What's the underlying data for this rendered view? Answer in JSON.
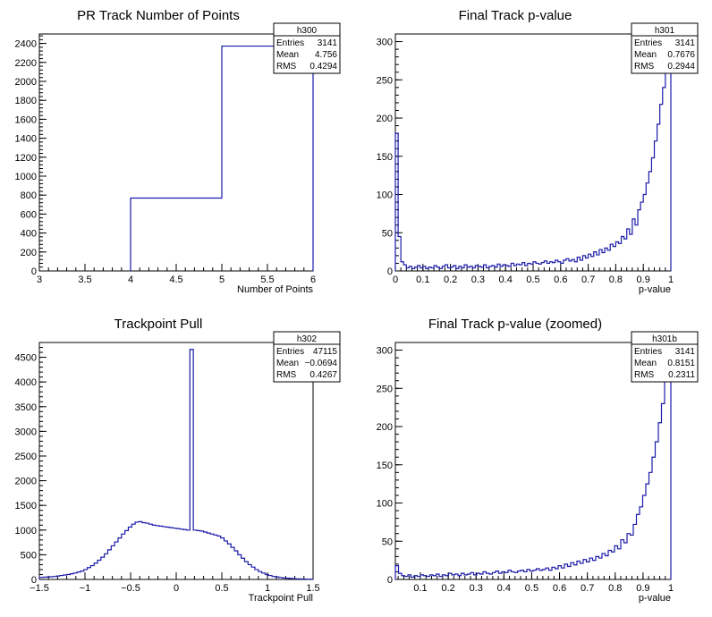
{
  "chart_data": [
    {
      "type": "histogram",
      "title": "PR Track Number of Points",
      "xlabel": "Number of Points",
      "ylabel": "",
      "xlim": [
        3,
        6
      ],
      "ylim": [
        0,
        2500
      ],
      "xticks": [
        "3",
        "3.5",
        "4",
        "4.5",
        "5",
        "5.5",
        "6"
      ],
      "yticks": [
        "0",
        "200",
        "400",
        "600",
        "800",
        "1000",
        "1200",
        "1400",
        "1600",
        "1800",
        "2000",
        "2200",
        "2400"
      ],
      "stats": {
        "name": "h300",
        "entries": "3141",
        "mean": "4.756",
        "rms": "0.4294"
      },
      "bin_edges": [
        4,
        5,
        6
      ],
      "values": [
        769,
        2372
      ]
    },
    {
      "type": "histogram",
      "title": "Final Track p-value",
      "xlabel": "p-value",
      "ylabel": "",
      "xlim": [
        0,
        1
      ],
      "ylim": [
        0,
        310
      ],
      "xticks": [
        "0",
        "0.1",
        "0.2",
        "0.3",
        "0.4",
        "0.5",
        "0.6",
        "0.7",
        "0.8",
        "0.9",
        "1"
      ],
      "yticks": [
        "0",
        "50",
        "100",
        "150",
        "200",
        "250",
        "300"
      ],
      "stats": {
        "name": "h301",
        "entries": "3141",
        "mean": "0.7676",
        "rms": "0.2944"
      },
      "bin_edges_range": [
        0,
        1
      ],
      "values": [
        180,
        45,
        12,
        8,
        4,
        6,
        3,
        5,
        7,
        4,
        6,
        3,
        5,
        4,
        7,
        5,
        3,
        6,
        8,
        4,
        5,
        7,
        3,
        6,
        4,
        8,
        5,
        6,
        4,
        7,
        6,
        5,
        8,
        4,
        6,
        7,
        5,
        9,
        6,
        8,
        7,
        6,
        10,
        7,
        9,
        8,
        11,
        7,
        10,
        9,
        12,
        10,
        9,
        11,
        13,
        10,
        12,
        11,
        14,
        12,
        10,
        14,
        16,
        13,
        15,
        12,
        18,
        14,
        20,
        17,
        22,
        19,
        25,
        21,
        28,
        24,
        30,
        27,
        35,
        32,
        38,
        36,
        45,
        42,
        55,
        48,
        68,
        60,
        80,
        90,
        100,
        115,
        130,
        148,
        170,
        192,
        218,
        240,
        270,
        305
      ]
    },
    {
      "type": "histogram",
      "title": "Trackpoint Pull",
      "xlabel": "Trackpoint Pull",
      "ylabel": "",
      "xlim": [
        -1.5,
        1.5
      ],
      "ylim": [
        0,
        4800
      ],
      "xticks": [
        "−1.5",
        "−1",
        "−0.5",
        "0",
        "0.5",
        "1",
        "1.5"
      ],
      "yticks": [
        "0",
        "500",
        "1000",
        "1500",
        "2000",
        "2500",
        "3000",
        "3500",
        "4000",
        "4500"
      ],
      "stats": {
        "name": "h302",
        "entries": "47115",
        "mean": "−0.0694",
        "rms": "0.4267"
      },
      "bin_edges_range": [
        -1.5,
        1.5
      ],
      "values": [
        40,
        45,
        50,
        55,
        60,
        70,
        80,
        90,
        100,
        115,
        130,
        150,
        170,
        200,
        240,
        280,
        330,
        390,
        450,
        520,
        600,
        680,
        760,
        840,
        920,
        990,
        1060,
        1120,
        1160,
        1170,
        1150,
        1140,
        1120,
        1100,
        1090,
        1080,
        1070,
        1060,
        1050,
        1040,
        1030,
        1020,
        1010,
        1000,
        4660,
        1000,
        990,
        980,
        960,
        940,
        920,
        900,
        880,
        840,
        780,
        720,
        650,
        580,
        500,
        430,
        360,
        300,
        250,
        200,
        160,
        130,
        100,
        80,
        60,
        50,
        40,
        30,
        25,
        20,
        15,
        12,
        10,
        8,
        6,
        5
      ]
    },
    {
      "type": "histogram",
      "title": "Final Track p-value (zoomed)",
      "xlabel": "p-value",
      "ylabel": "",
      "xlim": [
        0.01,
        1
      ],
      "ylim": [
        0,
        310
      ],
      "xticks": [
        "0.1",
        "0.2",
        "0.3",
        "0.4",
        "0.5",
        "0.6",
        "0.7",
        "0.8",
        "0.9",
        "1"
      ],
      "yticks": [
        "0",
        "50",
        "100",
        "150",
        "200",
        "250",
        "300"
      ],
      "stats": {
        "name": "h301b",
        "entries": "3141",
        "mean": "0.8151",
        "rms": "0.2311"
      },
      "bin_edges_range": [
        0.01,
        1
      ],
      "values": [
        18,
        8,
        5,
        4,
        6,
        3,
        5,
        4,
        6,
        5,
        4,
        6,
        5,
        7,
        4,
        6,
        5,
        8,
        6,
        7,
        5,
        8,
        6,
        7,
        9,
        6,
        8,
        7,
        10,
        8,
        7,
        9,
        11,
        8,
        10,
        9,
        12,
        10,
        9,
        11,
        12,
        10,
        13,
        11,
        12,
        14,
        12,
        13,
        15,
        12,
        16,
        14,
        18,
        15,
        20,
        17,
        22,
        19,
        24,
        21,
        26,
        23,
        28,
        25,
        30,
        28,
        34,
        31,
        38,
        36,
        44,
        40,
        52,
        48,
        60,
        58,
        72,
        85,
        95,
        110,
        125,
        140,
        160,
        180,
        205,
        230,
        260,
        300
      ]
    }
  ]
}
